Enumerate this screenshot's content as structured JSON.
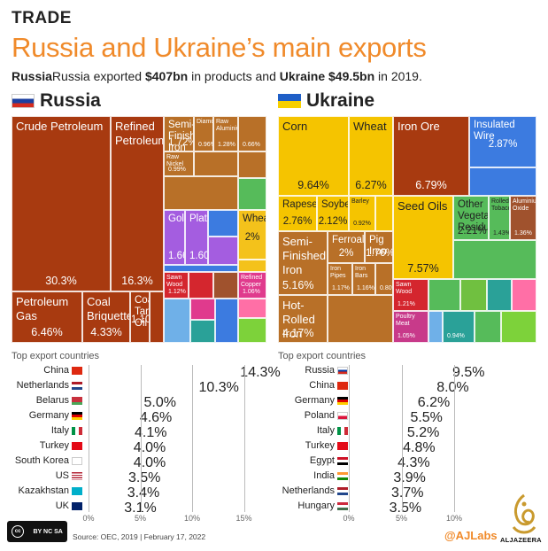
{
  "header": {
    "kicker": "TRADE",
    "title": "Russia and Ukraine’s main exports",
    "subtitle_pre": "Russia exported ",
    "subtitle_ru_value": "$407bn",
    "subtitle_mid": " in products and ",
    "subtitle_ua_name": "Ukraine",
    "subtitle_ua_value": "$49.5bn",
    "subtitle_post": " in 2019."
  },
  "russia": {
    "name": "Russia"
  },
  "ukraine": {
    "name": "Ukraine"
  },
  "colors": {
    "mineral": "#a83a10",
    "stone": "#f4c21b",
    "metal": "#b87028",
    "chem": "#e03a8d",
    "machine": "#3c7be0",
    "transport": "#6fb0e8",
    "veg": "#f5c400",
    "food": "#a0522d",
    "animal": "#c83a8a",
    "wood": "#d4262e",
    "plastic": "#56bb5a",
    "precious": "#a45de0",
    "textile": "#70c040",
    "oils": "#a5a83a",
    "teal": "#2aa198",
    "pink": "#ff6fa6",
    "lime": "#7dd23a"
  },
  "chart_data": [
    {
      "type": "treemap",
      "title": "Russia",
      "labeled_items": [
        {
          "label": "Crude Petroleum",
          "value": 30.3
        },
        {
          "label": "Refined Petroleum",
          "value": 16.3
        },
        {
          "label": "Petroleum Gas",
          "value": 6.46
        },
        {
          "label": "Coal Briquettes",
          "value": 4.33
        },
        {
          "label": "Semi-Finished Iron",
          "value": 1.72
        },
        {
          "label": "Gold",
          "value": 1.66
        },
        {
          "label": "Platinum",
          "value": 1.6
        },
        {
          "label": "Wheat",
          "value": 2.0
        },
        {
          "label": "Coal Tar Oil",
          "value": 1.1
        },
        {
          "label": "Sawn Wood",
          "value": 1.12
        },
        {
          "label": "Diamonds",
          "value": 0.96
        },
        {
          "label": "Raw Aluminium",
          "value": 1.28
        },
        {
          "label": "Refined Copper",
          "value": 1.06
        },
        {
          "label": "Raw Nickel",
          "value": 0.99
        },
        {
          "label": "",
          "value": 0.66
        }
      ],
      "top_export_countries": [
        {
          "country": "China",
          "value": 14.3,
          "label": "14.3%"
        },
        {
          "country": "Netherlands",
          "value": 10.3,
          "label": "10.3%"
        },
        {
          "country": "Belarus",
          "value": 5.0,
          "label": "5.0%"
        },
        {
          "country": "Germany",
          "value": 4.6,
          "label": "4.6%"
        },
        {
          "country": "Italy",
          "value": 4.1,
          "label": "4.1%"
        },
        {
          "country": "Turkey",
          "value": 4.0,
          "label": "4.0%"
        },
        {
          "country": "South Korea",
          "value": 4.0,
          "label": "4.0%"
        },
        {
          "country": "US",
          "value": 3.5,
          "label": "3.5%"
        },
        {
          "country": "Kazakhstan",
          "value": 3.4,
          "label": "3.4%"
        },
        {
          "country": "UK",
          "value": 3.1,
          "label": "3.1%"
        }
      ],
      "xlim": [
        0,
        16
      ],
      "x_ticks": [
        "0%",
        "5%",
        "10%",
        "15%"
      ]
    },
    {
      "type": "treemap",
      "title": "Ukraine",
      "labeled_items": [
        {
          "label": "Corn",
          "value": 9.64
        },
        {
          "label": "Wheat",
          "value": 6.27
        },
        {
          "label": "Iron Ore",
          "value": 6.79
        },
        {
          "label": "Insulated Wire",
          "value": 2.87
        },
        {
          "label": "Rapeseed",
          "value": 2.76
        },
        {
          "label": "Soybeans",
          "value": 2.12
        },
        {
          "label": "Barley",
          "value": 0.92
        },
        {
          "label": "Seed Oils",
          "value": 7.57
        },
        {
          "label": "Other Vegetable Residues",
          "value": 2.21
        },
        {
          "label": "Rolled Tobacco",
          "value": 1.43
        },
        {
          "label": "Aluminium Oxide",
          "value": 1.36
        },
        {
          "label": "Semi-Finished Iron",
          "value": 5.16
        },
        {
          "label": "Ferroalloys",
          "value": 2.0
        },
        {
          "label": "Pig Iron",
          "value": 1.76
        },
        {
          "label": "Iron Pipes",
          "value": 1.17
        },
        {
          "label": "Iron Bars",
          "value": 1.16
        },
        {
          "label": "",
          "value": 0.8
        },
        {
          "label": "Hot-Rolled Iron",
          "value": 4.17
        },
        {
          "label": "Sawn Wood",
          "value": 1.21
        },
        {
          "label": "Poultry Meat",
          "value": 1.05
        },
        {
          "label": "",
          "value": 0.94
        }
      ],
      "top_export_countries": [
        {
          "country": "Russia",
          "value": 9.5,
          "label": "9.5%"
        },
        {
          "country": "China",
          "value": 8.0,
          "label": "8.0%"
        },
        {
          "country": "Germany",
          "value": 6.2,
          "label": "6.2%"
        },
        {
          "country": "Poland",
          "value": 5.5,
          "label": "5.5%"
        },
        {
          "country": "Italy",
          "value": 5.2,
          "label": "5.2%"
        },
        {
          "country": "Turkey",
          "value": 4.8,
          "label": "4.8%"
        },
        {
          "country": "Egypt",
          "value": 4.3,
          "label": "4.3%"
        },
        {
          "country": "India",
          "value": 3.9,
          "label": "3.9%"
        },
        {
          "country": "Netherlands",
          "value": 3.7,
          "label": "3.7%"
        },
        {
          "country": "Hungary",
          "value": 3.5,
          "label": "3.5%"
        }
      ],
      "xlim": [
        0,
        11
      ],
      "x_ticks": [
        "0%",
        "5%",
        "10%"
      ]
    }
  ],
  "labels": {
    "top_export_countries": "Top export countries"
  },
  "footer": {
    "license": "BY NC SA",
    "source": "Source: OEC, 2019 | February 17, 2022",
    "brand": "@AJLabs",
    "logo_text": "ALJAZEERA"
  }
}
